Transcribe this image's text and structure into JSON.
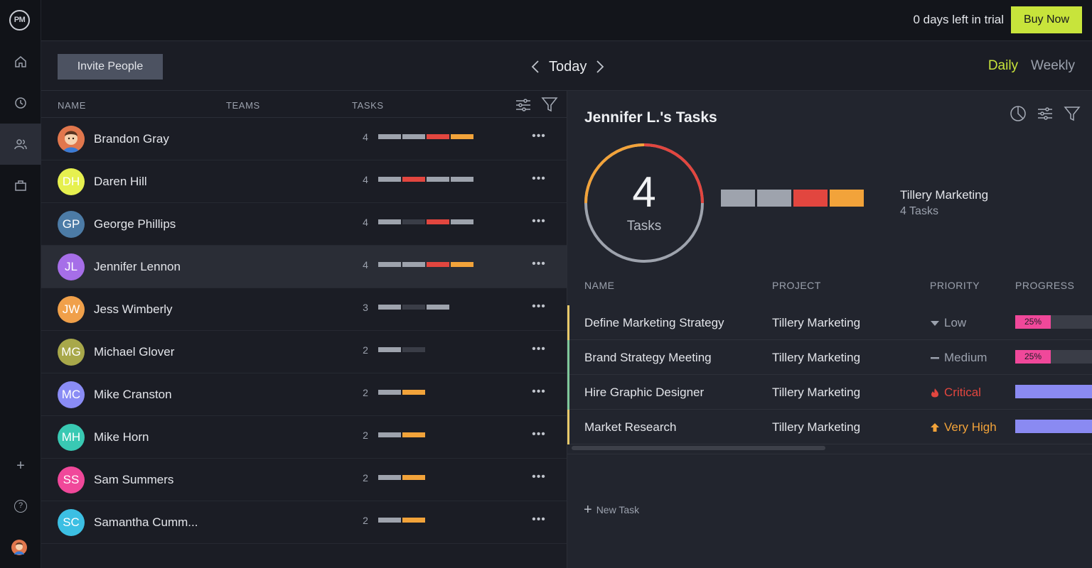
{
  "app": {
    "logo_text": "PM"
  },
  "rail": {
    "items": [
      "home-icon",
      "clock-icon",
      "users-icon",
      "briefcase-icon"
    ],
    "active": "users-icon"
  },
  "topbar": {
    "trial_text": "0 days left in trial",
    "buy_label": "Buy Now"
  },
  "toolbar": {
    "invite_label": "Invite People",
    "date_label": "Today",
    "range_daily": "Daily",
    "range_weekly": "Weekly"
  },
  "colors": {
    "accent": "#c8e43b",
    "gray": "#9ea3ad",
    "dark": "#3a3d47",
    "red": "#e2463f",
    "orange": "#f2a33a",
    "pink": "#f0489a",
    "purple": "#8a8af2"
  },
  "people": {
    "headers": {
      "name": "NAME",
      "teams": "TEAMS",
      "tasks": "TASKS"
    },
    "rows": [
      {
        "name": "Brandon Gray",
        "initials": "",
        "avatar_color": "#e1774d",
        "photo": true,
        "count": "4",
        "bars": [
          "gray",
          "gray",
          "red",
          "orange"
        ],
        "selected": false
      },
      {
        "name": "Daren Hill",
        "initials": "DH",
        "avatar_color": "#e6f04f",
        "photo": false,
        "count": "4",
        "bars": [
          "gray",
          "red",
          "gray",
          "gray"
        ],
        "selected": false
      },
      {
        "name": "George Phillips",
        "initials": "GP",
        "avatar_color": "#4c7ba6",
        "photo": false,
        "count": "4",
        "bars": [
          "gray",
          "dark",
          "red",
          "gray"
        ],
        "selected": false
      },
      {
        "name": "Jennifer Lennon",
        "initials": "JL",
        "avatar_color": "#a66ee8",
        "photo": false,
        "count": "4",
        "bars": [
          "gray",
          "gray",
          "red",
          "orange"
        ],
        "selected": true
      },
      {
        "name": "Jess Wimberly",
        "initials": "JW",
        "avatar_color": "#f0a04a",
        "photo": false,
        "count": "3",
        "bars": [
          "gray",
          "dark",
          "gray"
        ],
        "selected": false
      },
      {
        "name": "Michael Glover",
        "initials": "MG",
        "avatar_color": "#a8a84a",
        "photo": false,
        "count": "2",
        "bars": [
          "gray",
          "dark"
        ],
        "selected": false
      },
      {
        "name": "Mike Cranston",
        "initials": "MC",
        "avatar_color": "#8a8cf5",
        "photo": false,
        "count": "2",
        "bars": [
          "gray",
          "orange"
        ],
        "selected": false
      },
      {
        "name": "Mike Horn",
        "initials": "MH",
        "avatar_color": "#39c9b3",
        "photo": false,
        "count": "2",
        "bars": [
          "gray",
          "orange"
        ],
        "selected": false
      },
      {
        "name": "Sam Summers",
        "initials": "SS",
        "avatar_color": "#f0489a",
        "photo": false,
        "count": "2",
        "bars": [
          "gray",
          "orange"
        ],
        "selected": false
      },
      {
        "name": "Samantha Cumm...",
        "initials": "SC",
        "avatar_color": "#3cbfe3",
        "photo": false,
        "count": "2",
        "bars": [
          "gray",
          "orange"
        ],
        "selected": false
      }
    ]
  },
  "panel": {
    "title": "Jennifer L.'s Tasks",
    "total": "4",
    "total_label": "Tasks",
    "bars": [
      "gray",
      "gray",
      "red",
      "orange"
    ],
    "project_name": "Tillery Marketing",
    "project_count": "4 Tasks",
    "headers": {
      "name": "NAME",
      "project": "PROJECT",
      "priority": "PRIORITY",
      "progress": "PROGRESS"
    },
    "tasks": [
      {
        "name": "Define Marketing Strategy",
        "project": "Tillery Marketing",
        "priority": "Low",
        "priority_icon": "arrow-down-icon",
        "priority_color": "#9ba1ad",
        "progress": 0.25,
        "progress_label": "25%",
        "progress_color": "#f0489a",
        "accent": "#e8c96a"
      },
      {
        "name": "Brand Strategy Meeting",
        "project": "Tillery Marketing",
        "priority": "Medium",
        "priority_icon": "dash-icon",
        "priority_color": "#9ba1ad",
        "progress": 0.25,
        "progress_label": "25%",
        "progress_color": "#f0489a",
        "accent": "#7fc79a"
      },
      {
        "name": "Hire Graphic Designer",
        "project": "Tillery Marketing",
        "priority": "Critical",
        "priority_icon": "flame-icon",
        "priority_color": "#e2463f",
        "progress": 1,
        "progress_label": "",
        "progress_color": "#8a8af2",
        "accent": "#7fc79a"
      },
      {
        "name": "Market Research",
        "project": "Tillery Marketing",
        "priority": "Very High",
        "priority_icon": "arrow-up-icon",
        "priority_color": "#f2a33a",
        "progress": 1,
        "progress_label": "",
        "progress_color": "#8a8af2",
        "accent": "#e8c96a"
      }
    ],
    "new_task_label": "New Task"
  }
}
